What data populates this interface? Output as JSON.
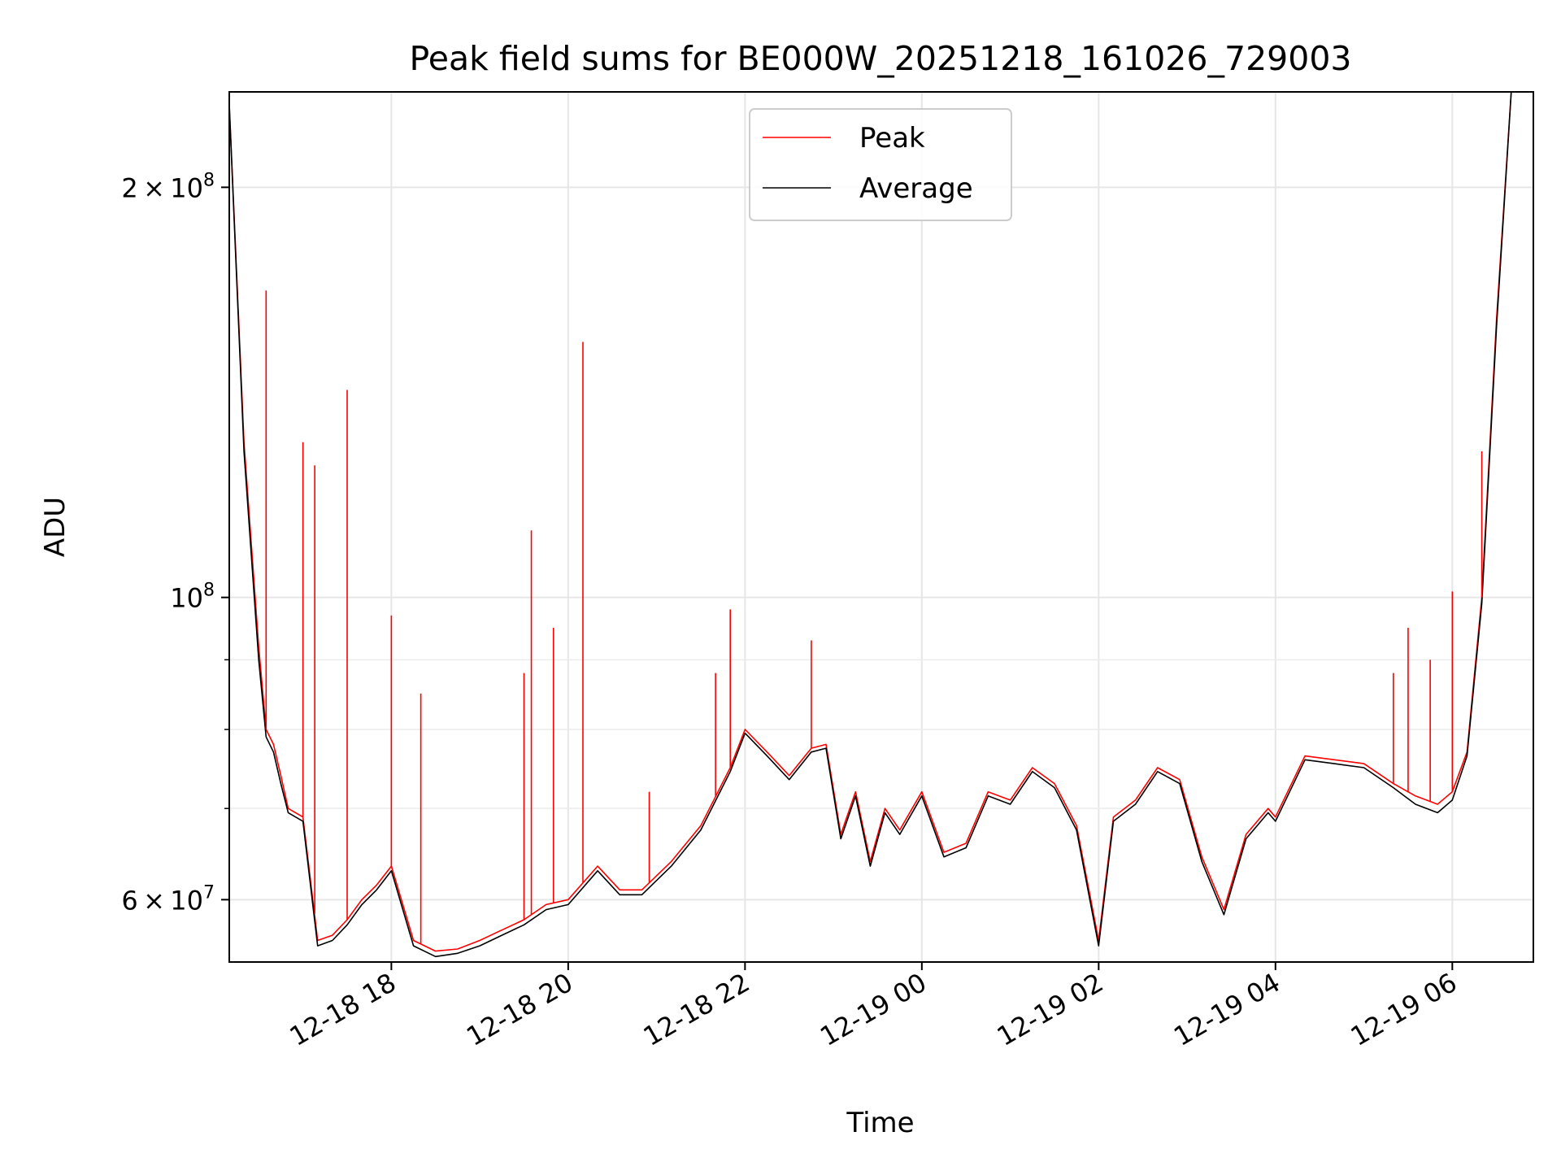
{
  "chart_data": {
    "type": "line",
    "title": "Peak field sums for BE000W_20251218_161026_729003",
    "xlabel": "Time",
    "ylabel": "ADU",
    "y_scale": "log",
    "ylim": [
      54000000,
      235000000
    ],
    "xlim": [
      "2025-12-18 16:10",
      "2025-12-19 06:55"
    ],
    "grid": true,
    "legend_position": "top-center",
    "x_ticks": [
      {
        "value": "2025-12-18 18:00",
        "label": "12-18 18"
      },
      {
        "value": "2025-12-18 20:00",
        "label": "12-18 20"
      },
      {
        "value": "2025-12-18 22:00",
        "label": "12-18 22"
      },
      {
        "value": "2025-12-19 00:00",
        "label": "12-19 00"
      },
      {
        "value": "2025-12-19 02:00",
        "label": "12-19 02"
      },
      {
        "value": "2025-12-19 04:00",
        "label": "12-19 04"
      },
      {
        "value": "2025-12-19 06:00",
        "label": "12-19 06"
      }
    ],
    "y_ticks": [
      {
        "value": 200000000,
        "mantissa": "2",
        "times": "×",
        "base": "10",
        "exponent": "8"
      },
      {
        "value": 100000000,
        "mantissa": "",
        "times": "",
        "base": "10",
        "exponent": "8"
      },
      {
        "value": 60000000,
        "mantissa": "6",
        "times": "×",
        "base": "10",
        "exponent": "7"
      }
    ],
    "y_minor_ticks": [
      70000000,
      80000000,
      90000000
    ],
    "series": [
      {
        "name": "Peak",
        "color": "#ff0000",
        "x": [
          "2025-12-18 16:10",
          "2025-12-18 16:20",
          "2025-12-18 16:30",
          "2025-12-18 16:35",
          "2025-12-18 16:40",
          "2025-12-18 16:45",
          "2025-12-18 16:50",
          "2025-12-18 17:00",
          "2025-12-18 17:10",
          "2025-12-18 17:20",
          "2025-12-18 17:30",
          "2025-12-18 17:40",
          "2025-12-18 17:50",
          "2025-12-18 18:00",
          "2025-12-18 18:15",
          "2025-12-18 18:30",
          "2025-12-18 18:45",
          "2025-12-18 19:00",
          "2025-12-18 19:15",
          "2025-12-18 19:30",
          "2025-12-18 19:45",
          "2025-12-18 20:00",
          "2025-12-18 20:20",
          "2025-12-18 20:35",
          "2025-12-18 20:50",
          "2025-12-18 21:10",
          "2025-12-18 21:30",
          "2025-12-18 21:50",
          "2025-12-18 22:00",
          "2025-12-18 22:15",
          "2025-12-18 22:30",
          "2025-12-18 22:45",
          "2025-12-18 22:55",
          "2025-12-18 23:05",
          "2025-12-18 23:15",
          "2025-12-18 23:25",
          "2025-12-18 23:35",
          "2025-12-18 23:45",
          "2025-12-19 00:00",
          "2025-12-19 00:15",
          "2025-12-19 00:30",
          "2025-12-19 00:45",
          "2025-12-19 01:00",
          "2025-12-19 01:15",
          "2025-12-19 01:30",
          "2025-12-19 01:45",
          "2025-12-19 02:00",
          "2025-12-19 02:10",
          "2025-12-19 02:25",
          "2025-12-19 02:40",
          "2025-12-19 02:55",
          "2025-12-19 03:10",
          "2025-12-19 03:25",
          "2025-12-19 03:40",
          "2025-12-19 03:55",
          "2025-12-19 04:00",
          "2025-12-19 04:20",
          "2025-12-19 04:40",
          "2025-12-19 05:00",
          "2025-12-19 05:20",
          "2025-12-19 05:35",
          "2025-12-19 05:50",
          "2025-12-19 06:00",
          "2025-12-19 06:10",
          "2025-12-19 06:20",
          "2025-12-19 06:30",
          "2025-12-19 06:40"
        ],
        "y": [
          230000000,
          130000000,
          92000000,
          80000000,
          78000000,
          74000000,
          70000000,
          69000000,
          56000000,
          56500000,
          58000000,
          60000000,
          61500000,
          63500000,
          56000000,
          55000000,
          55200000,
          56000000,
          57000000,
          58000000,
          59500000,
          60000000,
          63500000,
          61000000,
          61000000,
          64000000,
          68000000,
          75000000,
          80000000,
          77000000,
          74000000,
          77500000,
          78000000,
          67000000,
          72000000,
          64000000,
          70000000,
          67500000,
          72000000,
          65000000,
          66000000,
          72000000,
          71000000,
          75000000,
          73000000,
          68000000,
          56000000,
          69000000,
          71000000,
          75000000,
          73500000,
          64500000,
          59000000,
          67000000,
          70000000,
          69000000,
          76500000,
          76000000,
          75500000,
          73000000,
          71500000,
          70500000,
          72000000,
          77000000,
          100000000,
          160000000,
          235000000
        ]
      },
      {
        "name": "Average",
        "color": "#000000",
        "x": [
          "2025-12-18 16:10",
          "2025-12-18 16:20",
          "2025-12-18 16:30",
          "2025-12-18 16:35",
          "2025-12-18 16:40",
          "2025-12-18 16:45",
          "2025-12-18 16:50",
          "2025-12-18 17:00",
          "2025-12-18 17:10",
          "2025-12-18 17:20",
          "2025-12-18 17:30",
          "2025-12-18 17:40",
          "2025-12-18 17:50",
          "2025-12-18 18:00",
          "2025-12-18 18:15",
          "2025-12-18 18:30",
          "2025-12-18 18:45",
          "2025-12-18 19:00",
          "2025-12-18 19:15",
          "2025-12-18 19:30",
          "2025-12-18 19:45",
          "2025-12-18 20:00",
          "2025-12-18 20:20",
          "2025-12-18 20:35",
          "2025-12-18 20:50",
          "2025-12-18 21:10",
          "2025-12-18 21:30",
          "2025-12-18 21:50",
          "2025-12-18 22:00",
          "2025-12-18 22:15",
          "2025-12-18 22:30",
          "2025-12-18 22:45",
          "2025-12-18 22:55",
          "2025-12-18 23:05",
          "2025-12-18 23:15",
          "2025-12-18 23:25",
          "2025-12-18 23:35",
          "2025-12-18 23:45",
          "2025-12-19 00:00",
          "2025-12-19 00:15",
          "2025-12-19 00:30",
          "2025-12-19 00:45",
          "2025-12-19 01:00",
          "2025-12-19 01:15",
          "2025-12-19 01:30",
          "2025-12-19 01:45",
          "2025-12-19 02:00",
          "2025-12-19 02:10",
          "2025-12-19 02:25",
          "2025-12-19 02:40",
          "2025-12-19 02:55",
          "2025-12-19 03:10",
          "2025-12-19 03:25",
          "2025-12-19 03:40",
          "2025-12-19 03:55",
          "2025-12-19 04:00",
          "2025-12-19 04:20",
          "2025-12-19 04:40",
          "2025-12-19 05:00",
          "2025-12-19 05:20",
          "2025-12-19 05:35",
          "2025-12-19 05:50",
          "2025-12-19 06:00",
          "2025-12-19 06:10",
          "2025-12-19 06:20",
          "2025-12-19 06:30",
          "2025-12-19 06:40"
        ],
        "y": [
          230000000,
          128000000,
          90000000,
          79000000,
          77000000,
          73000000,
          69500000,
          68500000,
          55500000,
          56000000,
          57500000,
          59500000,
          61000000,
          63000000,
          55500000,
          54500000,
          54800000,
          55500000,
          56500000,
          57500000,
          59000000,
          59500000,
          63000000,
          60500000,
          60500000,
          63500000,
          67500000,
          74500000,
          79500000,
          76500000,
          73500000,
          77000000,
          77500000,
          66500000,
          71500000,
          63500000,
          69500000,
          67000000,
          71500000,
          64500000,
          65500000,
          71500000,
          70500000,
          74500000,
          72500000,
          67500000,
          55500000,
          68500000,
          70500000,
          74500000,
          73000000,
          64000000,
          58500000,
          66500000,
          69500000,
          68500000,
          76000000,
          75500000,
          75000000,
          72500000,
          70500000,
          69500000,
          71000000,
          76500000,
          99000000,
          158000000,
          235000000
        ]
      }
    ],
    "peak_spikes": [
      {
        "x": "2025-12-18 16:35",
        "y": 168000000
      },
      {
        "x": "2025-12-18 17:00",
        "y": 130000000
      },
      {
        "x": "2025-12-18 17:08",
        "y": 125000000
      },
      {
        "x": "2025-12-18 17:30",
        "y": 142000000
      },
      {
        "x": "2025-12-18 18:00",
        "y": 97000000
      },
      {
        "x": "2025-12-18 18:20",
        "y": 85000000
      },
      {
        "x": "2025-12-18 19:30",
        "y": 88000000
      },
      {
        "x": "2025-12-18 19:35",
        "y": 112000000
      },
      {
        "x": "2025-12-18 19:50",
        "y": 95000000
      },
      {
        "x": "2025-12-18 20:10",
        "y": 154000000
      },
      {
        "x": "2025-12-18 20:55",
        "y": 72000000
      },
      {
        "x": "2025-12-18 21:40",
        "y": 88000000
      },
      {
        "x": "2025-12-18 21:50",
        "y": 98000000
      },
      {
        "x": "2025-12-18 22:45",
        "y": 93000000
      },
      {
        "x": "2025-12-19 05:20",
        "y": 88000000
      },
      {
        "x": "2025-12-19 05:30",
        "y": 95000000
      },
      {
        "x": "2025-12-19 05:45",
        "y": 90000000
      },
      {
        "x": "2025-12-19 06:00",
        "y": 101000000
      },
      {
        "x": "2025-12-19 06:20",
        "y": 128000000
      }
    ]
  }
}
